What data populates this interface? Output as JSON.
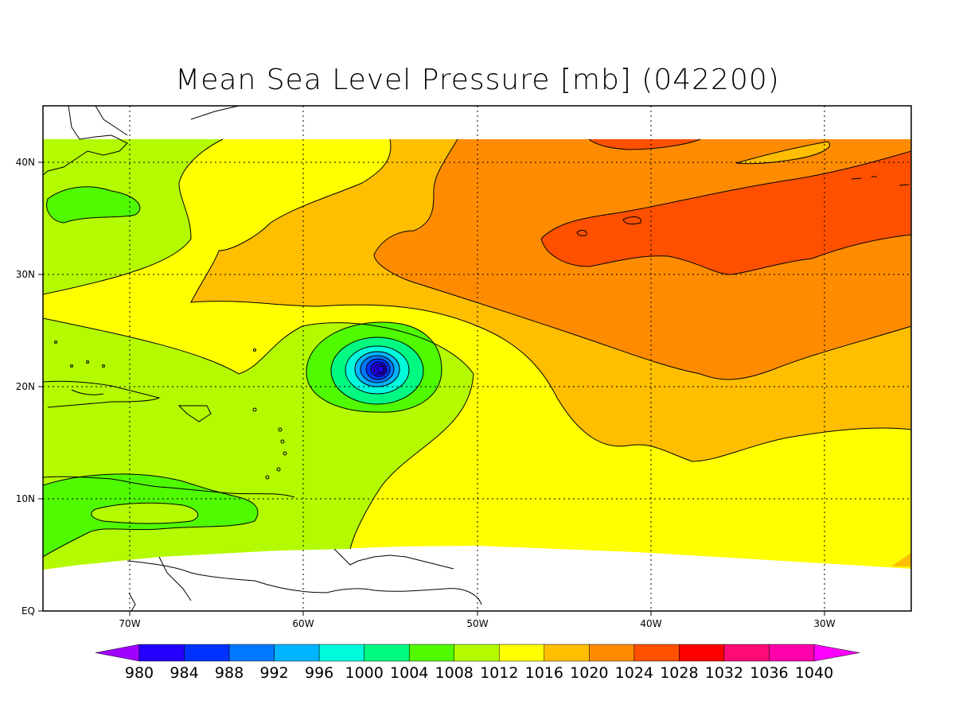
{
  "title": "Mean Sea Level Pressure [mb] (042200)",
  "map": {
    "lon_ticks": [
      "70W",
      "60W",
      "50W",
      "40W",
      "30W"
    ],
    "lat_ticks": [
      "40N",
      "30N",
      "20N",
      "10N",
      "EQ"
    ],
    "grid": "dotted"
  },
  "colorbar": {
    "labels": [
      "980",
      "984",
      "988",
      "992",
      "996",
      "1000",
      "1004",
      "1008",
      "1012",
      "1016",
      "1020",
      "1024",
      "1028",
      "1032",
      "1036",
      "1040"
    ],
    "colors": [
      "#a000ff",
      "#2400ff",
      "#0032ff",
      "#0078ff",
      "#00b4ff",
      "#00fadc",
      "#00fa82",
      "#50fa00",
      "#b4fa00",
      "#ffff00",
      "#ffbe00",
      "#ff8c00",
      "#ff5000",
      "#ff0000",
      "#ff0b78",
      "#ff00aa",
      "#ff00ff"
    ]
  },
  "chart_data": {
    "type": "heatmap",
    "title": "Mean Sea Level Pressure [mb] (042200)",
    "units": "mb",
    "x_ticks": [
      "70W",
      "60W",
      "50W",
      "40W",
      "30W"
    ],
    "y_ticks": [
      "EQ",
      "10N",
      "20N",
      "30N",
      "40N"
    ],
    "levels": [
      980,
      984,
      988,
      992,
      996,
      1000,
      1004,
      1008,
      1012,
      1016,
      1020,
      1024,
      1028,
      1032,
      1036,
      1040
    ],
    "features": [
      {
        "label": "Low pressure center",
        "lon": -55.5,
        "lat": 21.5,
        "value_mb": 980
      },
      {
        "label": "High pressure ridge",
        "lon": -35,
        "lat": 35,
        "value_mb": 1028
      }
    ]
  }
}
